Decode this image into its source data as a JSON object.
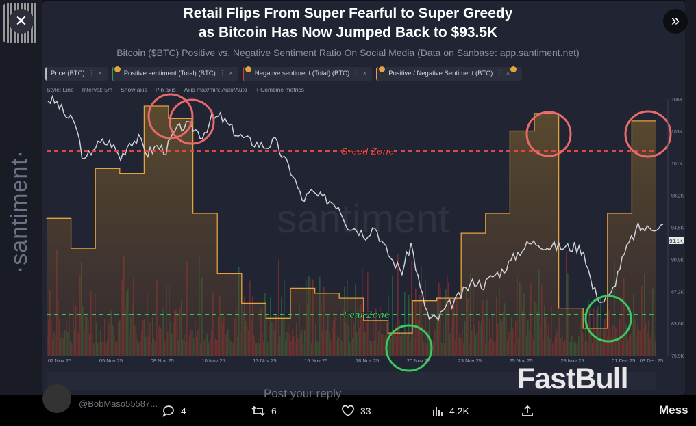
{
  "header": {
    "title_line1": "Retail Flips From Super Fearful to Super Greedy",
    "title_line2": "as Bitcoin Has Now Jumped Back to $93.5K",
    "subtitle": "Bitcoin ($BTC) Positive vs. Negative Sentiment Ratio On Social Media (Data on Sanbase: app.santiment.net)"
  },
  "controls": {
    "close_glyph": "✕",
    "expand_glyph": "»"
  },
  "legend": [
    {
      "label": "Price (BTC)",
      "color": "#bbbbbb"
    },
    {
      "label": "Positive sentiment (Total) (BTC)",
      "color": "#2e9e4e"
    },
    {
      "label": "Negative sentiment (Total) (BTC)",
      "color": "#d43b3b"
    },
    {
      "label": "Positive / Negative Sentiment (BTC)",
      "color": "#e6a23c"
    }
  ],
  "toolbar": {
    "style": "Style: Line",
    "interval": "Interval: 5m",
    "show_axis": "Show axis",
    "pin_axis": "Pin axis",
    "axis_minmax": "Axis max/min: Auto/Auto",
    "combine": "+ Combine metrics"
  },
  "zones": {
    "greed": "Greed Zone",
    "fear": "Fear Zone"
  },
  "watermark": {
    "side": "·santiment·",
    "center": "santiment",
    "brand": "FastBull"
  },
  "chart_data": {
    "type": "line",
    "x_tick_labels": [
      "02 Nov 25",
      "05 Nov 25",
      "08 Nov 25",
      "10 Nov 25",
      "13 Nov 25",
      "15 Nov 25",
      "18 Nov 25",
      "20 Nov 25",
      "23 Nov 25",
      "25 Nov 25",
      "28 Nov 25",
      "01 Dec 25",
      "03 Dec 25"
    ],
    "y_tick_labels": [
      "106K",
      "103K",
      "101K",
      "98.2K",
      "94.5K",
      "90.9K",
      "87.2K",
      "83.6K",
      "79.9K"
    ],
    "price_badge": "93.1K",
    "ylim": [
      79.9,
      106
    ],
    "ratio_series": {
      "name": "Positive / Negative Sentiment (BTC)",
      "steps": [
        0.55,
        0.43,
        0.75,
        0.73,
        1.0,
        0.95,
        0.57,
        0.33,
        0.21,
        0.15,
        0.27,
        0.25,
        0.23,
        0.14,
        0.09,
        0.22,
        0.23,
        0.49,
        0.57,
        0.9,
        0.97,
        0.19,
        0.11,
        0.57,
        0.94
      ]
    },
    "price_series": {
      "name": "Price (BTC)",
      "values": [
        106,
        105.6,
        104.3,
        103.5,
        99.5,
        101.1,
        101.6,
        101.5,
        100.0,
        101.7,
        101.9,
        100.5,
        101.2,
        100.8,
        102.7,
        103.3,
        103.1,
        102.3,
        103.9,
        104.2,
        103.2,
        102.3,
        101.8,
        101.5,
        101.2,
        101.7,
        99.9,
        98.3,
        95.7,
        96.5,
        96.0,
        95.7,
        95.2,
        93.2,
        92.8,
        92.2,
        93.1,
        91.0,
        89.5,
        88.5,
        91.3,
        86.7,
        83.6,
        83.7,
        84.9,
        85.6,
        86.6,
        87.5,
        87.1,
        88.0,
        88.5,
        89.5,
        90.6,
        91.3,
        91.4,
        91.0,
        91.0,
        90.9,
        91.0,
        90.6,
        86.8,
        85.4,
        86.0,
        89.0,
        91.3,
        92.9,
        92.8,
        93.1
      ]
    }
  },
  "tweet": {
    "reply_placeholder": "Post your reply",
    "replies": "4",
    "retweets": "6",
    "likes": "33",
    "views": "4.2K",
    "handle": "@BobMaso55587...",
    "messages": "Mess"
  }
}
